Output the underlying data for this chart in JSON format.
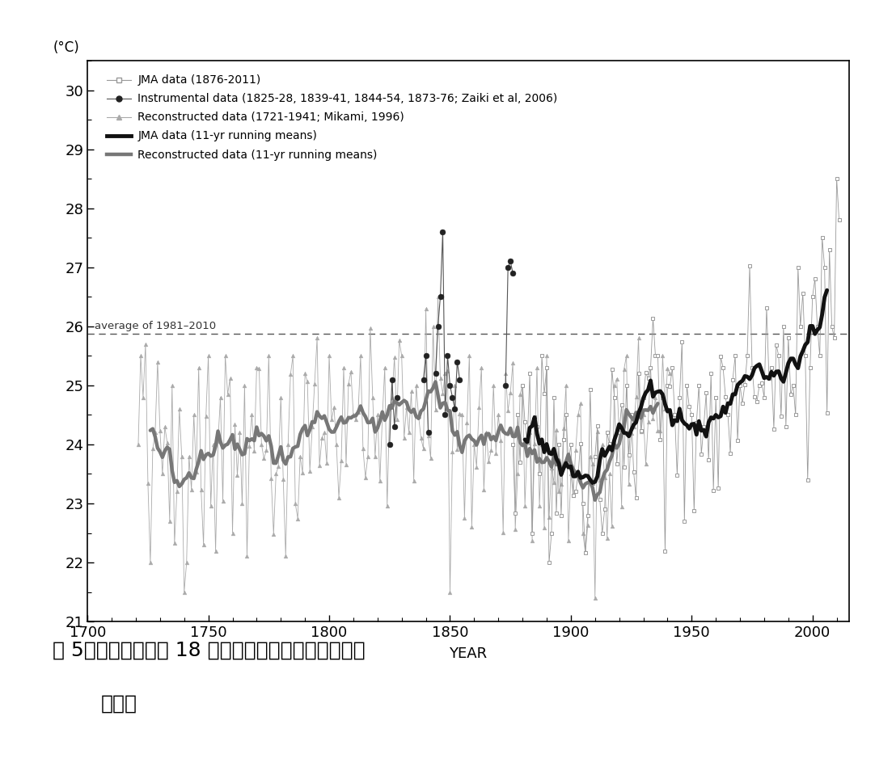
{
  "xlabel": "YEAR",
  "ylabel": "(°C)",
  "ylim": [
    21.0,
    30.5
  ],
  "xlim": [
    1700,
    2015
  ],
  "yticks": [
    21,
    22,
    23,
    24,
    25,
    26,
    27,
    28,
    29,
    30
  ],
  "xticks": [
    1700,
    1750,
    1800,
    1850,
    1900,
    1950,
    2000
  ],
  "avg_line": 25.87,
  "avg_label": "average of 1981–2010",
  "bg_color": "#ffffff",
  "legend_entries": [
    "JMA data (1876-2011)",
    "Instrumental data (1825-28, 1839-41, 1844-54, 1873-76; Zaiki et al, 2006)",
    "Reconstructed data (1721-1941; Mikami, 1996)",
    "JMA data (11-yr running means)",
    "Reconstructed data (11-yr running means)"
  ]
}
